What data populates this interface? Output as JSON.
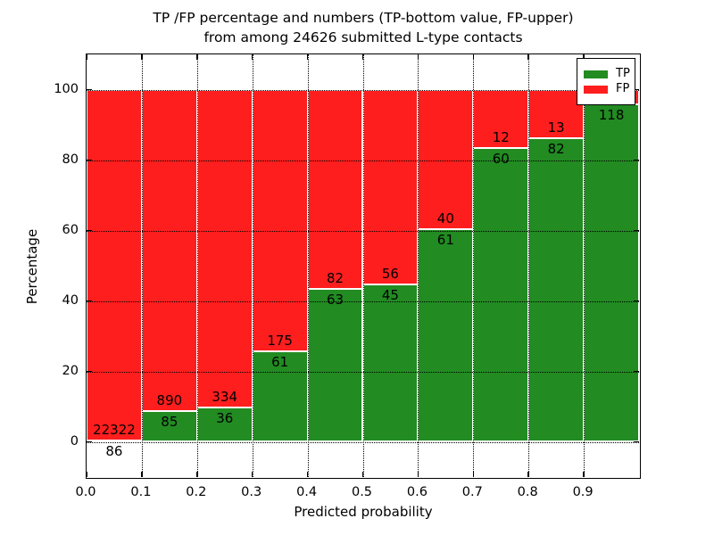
{
  "title": {
    "line1": "TP /FP percentage and numbers (TP-bottom value, FP-upper)",
    "line2": "from among 24626 submitted L-type contacts"
  },
  "axes": {
    "xlabel": "Predicted probability",
    "ylabel": "Percentage",
    "xtick_labels": [
      "0.0",
      "0.1",
      "0.2",
      "0.3",
      "0.4",
      "0.5",
      "0.6",
      "0.7",
      "0.8",
      "0.9"
    ],
    "ytick_labels": [
      "0",
      "20",
      "40",
      "60",
      "80",
      "100"
    ]
  },
  "legend": {
    "items": [
      {
        "label": "TP",
        "color": "#228b22"
      },
      {
        "label": "FP",
        "color": "#ff1e1e"
      }
    ]
  },
  "colors": {
    "tp_green": "#228b22",
    "fp_red": "#ff1e1e",
    "axis": "#000000",
    "background": "#ffffff"
  },
  "chart_data": {
    "type": "bar",
    "variant": "stacked-percentage-histogram",
    "title": "TP /FP percentage and numbers (TP-bottom value, FP-upper) from among 24626 submitted L-type contacts",
    "total_submitted_contacts": 24626,
    "xlabel": "Predicted probability",
    "ylabel": "Percentage",
    "xlim": [
      0.0,
      1.0
    ],
    "ylim": [
      -10,
      110
    ],
    "bin_width": 0.1,
    "grid": "dotted",
    "legend_position": "upper-right",
    "categories": [
      "0.0-0.1",
      "0.1-0.2",
      "0.2-0.3",
      "0.3-0.4",
      "0.4-0.5",
      "0.5-0.6",
      "0.6-0.7",
      "0.7-0.8",
      "0.8-0.9",
      "0.9-1.0"
    ],
    "series": [
      {
        "name": "TP",
        "stack_position": "bottom",
        "color": "#228b22",
        "counts": [
          86,
          85,
          36,
          61,
          63,
          45,
          61,
          60,
          82,
          118
        ],
        "pct": [
          0.4,
          8.7,
          9.7,
          25.8,
          43.4,
          44.6,
          60.4,
          83.3,
          86.3,
          95.9
        ]
      },
      {
        "name": "FP",
        "stack_position": "top",
        "color": "#ff1e1e",
        "counts": [
          22322,
          890,
          334,
          175,
          82,
          56,
          40,
          12,
          13,
          null
        ],
        "pct": [
          99.6,
          91.3,
          90.3,
          74.2,
          56.6,
          55.4,
          39.6,
          16.7,
          13.7,
          4.1
        ]
      }
    ],
    "notes": "Counts are printed on the bars: TP count just below the TP/FP boundary, FP count just above it. FP count of last bin is hidden behind the legend. TP count of first bin (86) prints below the 0% line."
  }
}
